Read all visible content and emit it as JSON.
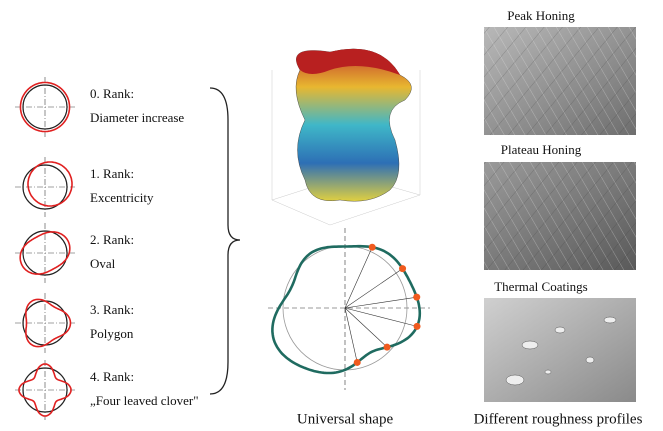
{
  "ranks": [
    {
      "rank": "0. Rank:",
      "description": "Diameter increase"
    },
    {
      "rank": "1. Rank:",
      "description": "Excentricity"
    },
    {
      "rank": "2. Rank:",
      "description": "Oval"
    },
    {
      "rank": "3. Rank:",
      "description": "Polygon"
    },
    {
      "rank": "4. Rank:",
      "description": "„Four leaved clover\""
    }
  ],
  "center": {
    "caption": "Universal shape"
  },
  "profiles": [
    {
      "title": "Peak Honing"
    },
    {
      "title": "Plateau Honing"
    },
    {
      "title": "Thermal Coatings"
    }
  ],
  "profiles_caption": "Different roughness profiles"
}
